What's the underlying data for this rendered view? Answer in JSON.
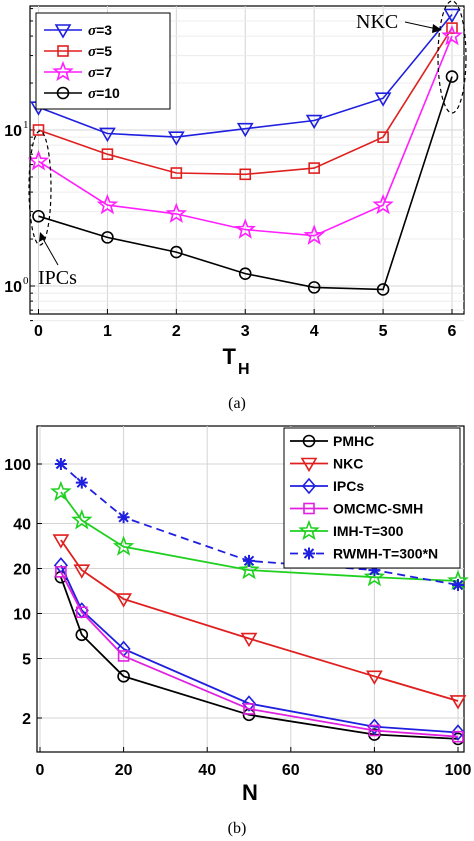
{
  "chart_data": [
    {
      "type": "line",
      "caption": "(a)",
      "xlabel": "T",
      "xlabel_sub": "H",
      "ylabel": "",
      "yscale": "log",
      "x": [
        0,
        1,
        2,
        3,
        4,
        5,
        6
      ],
      "xlim": [
        0,
        6
      ],
      "ylim": [
        0.6,
        60
      ],
      "xticks": [
        "0",
        "1",
        "2",
        "3",
        "4",
        "5",
        "6"
      ],
      "yticks": [
        {
          "value": 1,
          "base": "10",
          "exp": "0"
        },
        {
          "value": 10,
          "base": "10",
          "exp": "1"
        }
      ],
      "grid": true,
      "legend_position": "top-left",
      "series": [
        {
          "name": "σ=3",
          "sym": "σ",
          "rest": "=3",
          "color": "#1f1fe0",
          "marker": "triangle-down",
          "values": [
            14,
            9.5,
            9,
            10.2,
            11.5,
            16,
            55
          ]
        },
        {
          "name": "σ=5",
          "sym": "σ",
          "rest": "=5",
          "color": "#e01f1f",
          "marker": "square",
          "values": [
            10,
            7,
            5.3,
            5.2,
            5.7,
            9,
            45
          ]
        },
        {
          "name": "σ=7",
          "sym": "σ",
          "rest": "=7",
          "color": "#ff1fff",
          "marker": "star",
          "values": [
            6.3,
            3.3,
            2.9,
            2.3,
            2.1,
            3.3,
            40
          ]
        },
        {
          "name": "σ=10",
          "sym": "σ",
          "rest": "=10",
          "color": "#000000",
          "marker": "circle",
          "values": [
            2.8,
            2.05,
            1.65,
            1.2,
            0.98,
            0.95,
            22
          ]
        }
      ],
      "annotations": [
        {
          "text": "IPCs",
          "target_x": 0
        },
        {
          "text": "NKC",
          "target_x": 6
        }
      ]
    },
    {
      "type": "line",
      "caption": "(b)",
      "xlabel": "N",
      "ylabel": "",
      "yscale": "log",
      "x": [
        5,
        10,
        20,
        50,
        80,
        100
      ],
      "xlim": [
        0,
        100
      ],
      "ylim": [
        1.4,
        140
      ],
      "xticks": [
        "0",
        "20",
        "40",
        "60",
        "80",
        "100"
      ],
      "yticks": [
        "2",
        "5",
        "10",
        "20",
        "40",
        "100"
      ],
      "grid": true,
      "legend_position": "top-right",
      "series": [
        {
          "name": "PMHC",
          "color": "#000000",
          "marker": "circle",
          "dashed": false,
          "values": [
            17.5,
            7.2,
            3.8,
            2.1,
            1.55,
            1.45
          ]
        },
        {
          "name": "NKC",
          "color": "#e01f1f",
          "marker": "triangle-down",
          "dashed": false,
          "values": [
            31,
            19.5,
            12.5,
            6.8,
            3.8,
            2.6
          ]
        },
        {
          "name": "IPCs",
          "color": "#1f1fe0",
          "marker": "diamond",
          "dashed": false,
          "values": [
            21,
            10.5,
            5.8,
            2.5,
            1.75,
            1.6
          ]
        },
        {
          "name": "OMCMC-SMH",
          "color": "#e01fe0",
          "marker": "square",
          "dashed": false,
          "values": [
            19,
            10.2,
            5.2,
            2.3,
            1.65,
            1.5
          ]
        },
        {
          "name": "IMH-T=300",
          "color": "#1fd01f",
          "marker": "star",
          "dashed": false,
          "values": [
            65,
            42,
            28,
            19.5,
            17.5,
            16.5
          ]
        },
        {
          "name": "RWMH-T=300*N",
          "color": "#1f1fe0",
          "marker": "asterisk",
          "dashed": true,
          "values": [
            100,
            75,
            44,
            22.5,
            19.5,
            15.5
          ]
        }
      ]
    }
  ]
}
